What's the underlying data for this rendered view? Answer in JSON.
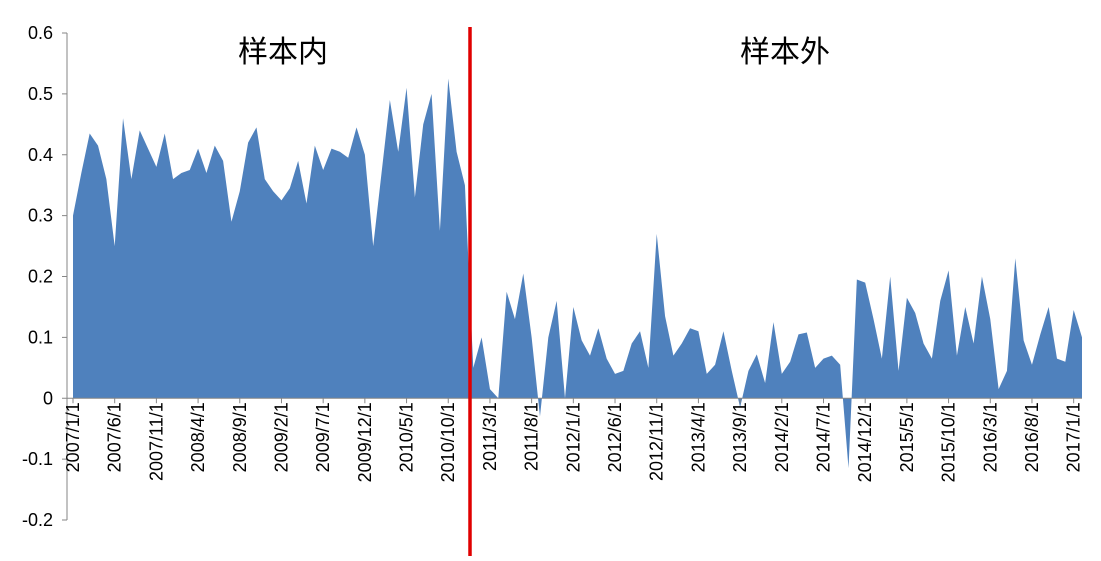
{
  "chart_data": {
    "type": "area",
    "annotations": [
      "样本内",
      "样本外"
    ],
    "color": "#4f81bd",
    "divider_color": "#e00000",
    "ylim": [
      -0.2,
      0.6
    ],
    "yticks": [
      -0.2,
      -0.1,
      0,
      0.1,
      0.2,
      0.3,
      0.4,
      0.5,
      0.6
    ],
    "categories": [
      "2007/1/1",
      null,
      null,
      null,
      null,
      "2007/6/1",
      null,
      null,
      null,
      null,
      "2007/11/1",
      null,
      null,
      null,
      null,
      "2008/4/1",
      null,
      null,
      null,
      null,
      "2008/9/1",
      null,
      null,
      null,
      null,
      "2009/2/1",
      null,
      null,
      null,
      null,
      "2009/7/1",
      null,
      null,
      null,
      null,
      "2009/12/1",
      null,
      null,
      null,
      null,
      "2010/5/1",
      null,
      null,
      null,
      null,
      "2010/10/1",
      null,
      null,
      null,
      null,
      "2011/3/1",
      null,
      null,
      null,
      null,
      "2011/8/1",
      null,
      null,
      null,
      null,
      "2012/1/1",
      null,
      null,
      null,
      null,
      "2012/6/1",
      null,
      null,
      null,
      null,
      "2012/11/1",
      null,
      null,
      null,
      null,
      "2013/4/1",
      null,
      null,
      null,
      null,
      "2013/9/1",
      null,
      null,
      null,
      null,
      "2014/2/1",
      null,
      null,
      null,
      null,
      "2014/7/1",
      null,
      null,
      null,
      null,
      "2014/12/1",
      null,
      null,
      null,
      null,
      "2015/5/1",
      null,
      null,
      null,
      null,
      "2015/10/1",
      null,
      null,
      null,
      null,
      "2016/3/1",
      null,
      null,
      null,
      null,
      "2016/8/1",
      null,
      null,
      null,
      null,
      "2017/1/1",
      null
    ],
    "values": [
      0.3,
      0.37,
      0.435,
      0.415,
      0.36,
      0.25,
      0.46,
      0.36,
      0.44,
      0.41,
      0.38,
      0.435,
      0.36,
      0.37,
      0.375,
      0.41,
      0.37,
      0.415,
      0.39,
      0.29,
      0.34,
      0.42,
      0.445,
      0.36,
      0.34,
      0.325,
      0.345,
      0.39,
      0.32,
      0.415,
      0.375,
      0.41,
      0.405,
      0.395,
      0.445,
      0.4,
      0.25,
      0.37,
      0.49,
      0.405,
      0.51,
      0.33,
      0.45,
      0.5,
      0.275,
      0.525,
      0.405,
      0.35,
      0.05,
      0.1,
      0.015,
      0.0,
      0.175,
      0.13,
      0.205,
      0.1,
      -0.03,
      0.1,
      0.16,
      0.0,
      0.15,
      0.095,
      0.07,
      0.115,
      0.065,
      0.04,
      0.045,
      0.09,
      0.11,
      0.05,
      0.27,
      0.135,
      0.07,
      0.09,
      0.115,
      0.11,
      0.04,
      0.055,
      0.11,
      0.045,
      -0.015,
      0.045,
      0.072,
      0.025,
      0.125,
      0.04,
      0.06,
      0.105,
      0.108,
      0.05,
      0.065,
      0.07,
      0.055,
      -0.115,
      0.195,
      0.19,
      0.13,
      0.065,
      0.2,
      0.045,
      0.165,
      0.14,
      0.09,
      0.065,
      0.16,
      0.21,
      0.07,
      0.15,
      0.09,
      0.2,
      0.13,
      0.015,
      0.045,
      0.23,
      0.095,
      0.055,
      0.105,
      0.15,
      0.065,
      0.06,
      0.145,
      0.1
    ]
  }
}
